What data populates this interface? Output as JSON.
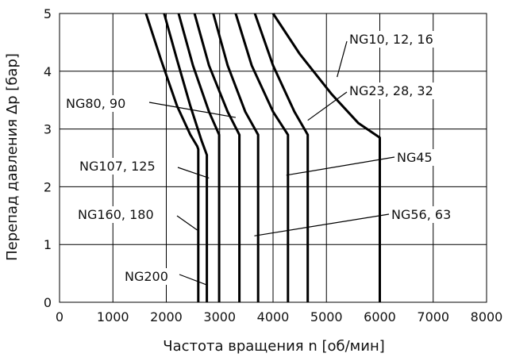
{
  "chart_data": {
    "type": "line",
    "xlabel": "Частота вращения n [об/мин]",
    "ylabel": "Перепад давления Δp [бар]",
    "xlim": [
      0,
      8000
    ],
    "ylim": [
      0,
      5
    ],
    "x_ticks": [
      "0",
      "1000",
      "2000",
      "3000",
      "4000",
      "5000",
      "6000",
      "7000",
      "8000"
    ],
    "y_ticks": [
      "0",
      "1",
      "2",
      "3",
      "4",
      "5"
    ],
    "grid": true,
    "series": [
      {
        "name": "NG200",
        "x": [
          1620,
          1900,
          2200,
          2450,
          2580,
          2600,
          2600
        ],
        "y": [
          5,
          4.2,
          3.4,
          2.9,
          2.7,
          2.65,
          0
        ]
      },
      {
        "name": "NG160, 180",
        "x": [
          1960,
          2200,
          2450,
          2660,
          2760,
          2760
        ],
        "y": [
          5,
          4.2,
          3.4,
          2.8,
          2.55,
          0
        ]
      },
      {
        "name": "NG107, 125",
        "x": [
          2230,
          2500,
          2800,
          2990,
          2990
        ],
        "y": [
          5,
          4.1,
          3.3,
          2.9,
          0
        ]
      },
      {
        "name": "NG80, 90",
        "x": [
          2530,
          2800,
          3150,
          3370,
          3370
        ],
        "y": [
          5,
          4.1,
          3.3,
          2.9,
          0
        ]
      },
      {
        "name": "NG56, 63",
        "x": [
          2880,
          3150,
          3480,
          3720,
          3720
        ],
        "y": [
          5,
          4.1,
          3.3,
          2.9,
          0
        ]
      },
      {
        "name": "NG45",
        "x": [
          3300,
          3600,
          4000,
          4280,
          4280
        ],
        "y": [
          5,
          4.1,
          3.3,
          2.9,
          0
        ]
      },
      {
        "name": "NG23, 28, 32",
        "x": [
          3660,
          4000,
          4400,
          4650,
          4650
        ],
        "y": [
          5,
          4.1,
          3.3,
          2.9,
          0
        ]
      },
      {
        "name": "NG10, 12, 16",
        "x": [
          4000,
          4500,
          5100,
          5600,
          6000,
          6000
        ],
        "y": [
          5,
          4.3,
          3.6,
          3.1,
          2.85,
          0
        ]
      }
    ],
    "annotations": [
      {
        "text": "NG10, 12, 16",
        "target": [
          5200,
          3.9
        ]
      },
      {
        "text": "NG23, 28, 32",
        "target": [
          4650,
          3.15
        ]
      },
      {
        "text": "NG80, 90",
        "target": [
          3300,
          3.2
        ]
      },
      {
        "text": "NG45",
        "target": [
          4250,
          2.2
        ]
      },
      {
        "text": "NG107, 125",
        "target": [
          2800,
          2.15
        ]
      },
      {
        "text": "NG160, 180",
        "target": [
          2580,
          1.25
        ]
      },
      {
        "text": "NG56, 63",
        "target": [
          3650,
          1.15
        ]
      },
      {
        "text": "NG200",
        "target": [
          2760,
          0.3
        ]
      }
    ]
  }
}
